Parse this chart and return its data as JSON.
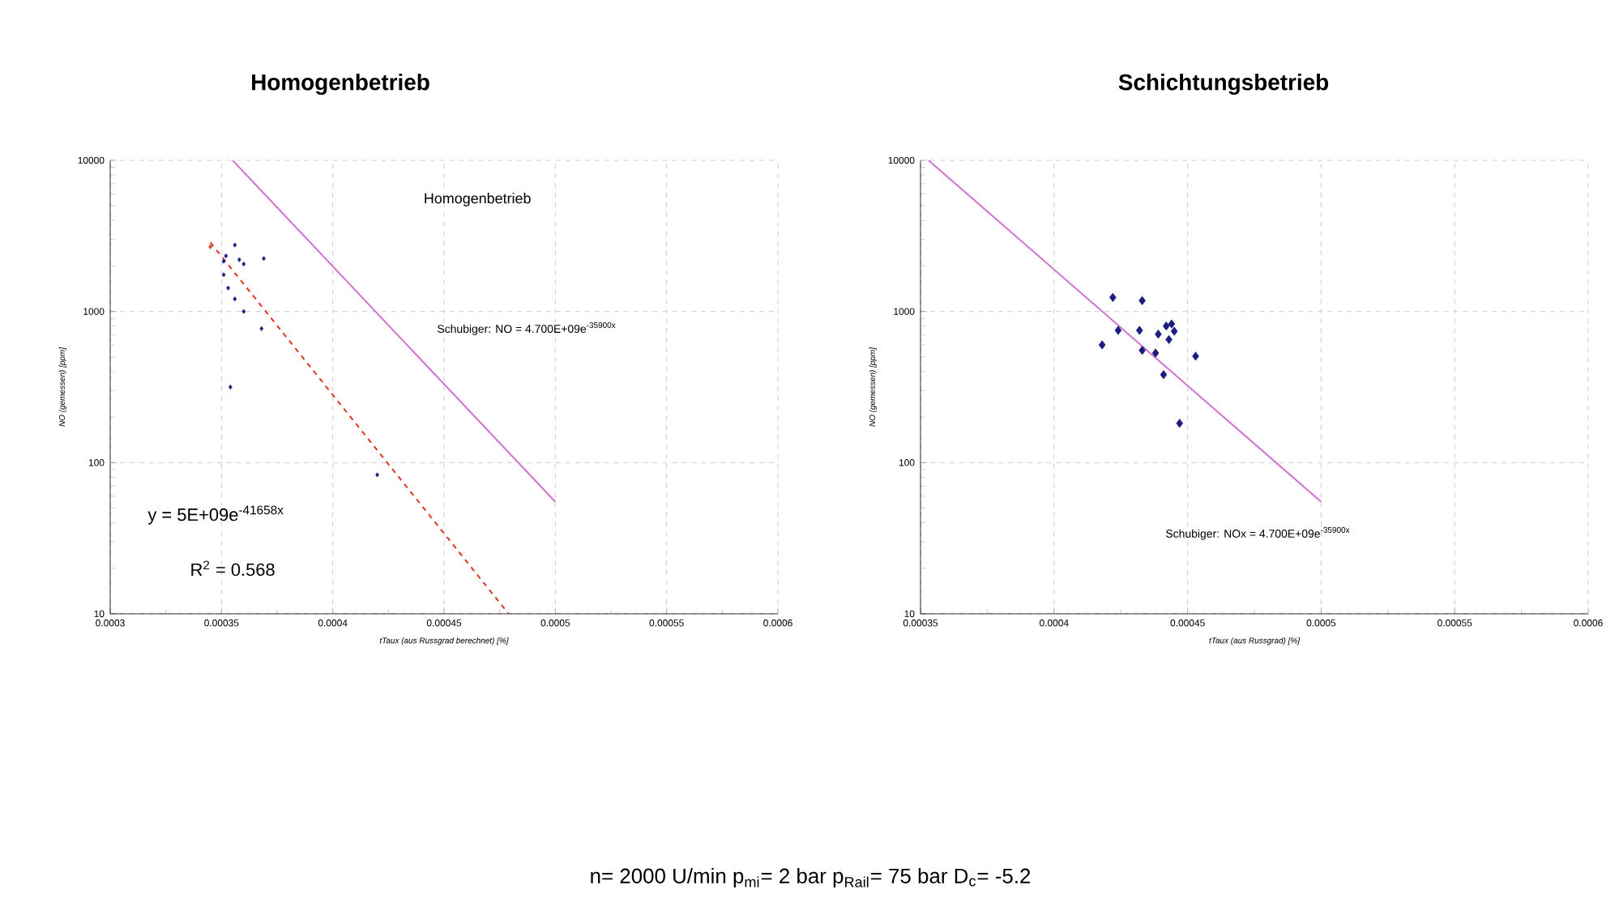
{
  "chart_data": [
    {
      "type": "scatter",
      "title": "Homogenbetrieb",
      "xlabel": "tTaux (aus Russgrad berechnet) [%]",
      "ylabel": "NO (gemessen) [ppm]",
      "xlim": [
        0.0003,
        0.0006
      ],
      "xticks": [
        0.0003,
        0.00035,
        0.0004,
        0.00045,
        0.0005,
        0.00055,
        0.0006
      ],
      "ylim": [
        10,
        10000
      ],
      "yticks": [
        10,
        100,
        1000,
        10000
      ],
      "log": "y",
      "grid": true,
      "series": [
        {
          "marker": "diamond",
          "color": "#1c1c80",
          "x": [
            0.000351,
            0.000356,
            0.000352,
            0.00036,
            0.000369,
            0.000358,
            0.000351,
            0.000353,
            0.000356,
            0.00036,
            0.000368,
            0.000354,
            0.00042
          ],
          "values": [
            2150,
            2750,
            2330,
            2060,
            2240,
            2200,
            1750,
            1430,
            1210,
            1000,
            770,
            316,
            83
          ]
        },
        {
          "marker": "diamond",
          "color": "#d04020",
          "x": [
            0.000345
          ],
          "values": [
            2680
          ]
        },
        {
          "type": "line",
          "marker": "none",
          "color": "#d070d0",
          "line_style": "solid",
          "x": [
            0.000355,
            0.0005
          ],
          "values": [
            10000,
            55
          ]
        },
        {
          "type": "line",
          "marker": "none",
          "color": "#e03020",
          "line_style": "dashed",
          "x": [
            0.000345,
            0.000479
          ],
          "values": [
            2860,
            10
          ]
        }
      ],
      "annotations": [
        "Homogenbetrieb",
        "Schubiger: NO = 4.700E+09e$^{-35900x}$",
        "y = 5E+09e$^{-41658x}$",
        "R$^{2}$ = 0.568",
        "n= 2000 U/min p$_{mi}$= 2 bar p$_{Rail}$= 75 bar D$_{c}$= -5.2"
      ]
    },
    {
      "type": "scatter",
      "title": "Schichtungsbetrieb",
      "xlabel": "tTaux (aus Russgrad) [%]",
      "ylabel": "NO (gemessen) [ppm]",
      "xlim": [
        0.00035,
        0.0006
      ],
      "xticks": [
        0.00035,
        0.0004,
        0.00045,
        0.0005,
        0.00055,
        0.0006
      ],
      "ylim": [
        10,
        10000
      ],
      "yticks": [
        10,
        100,
        1000,
        10000
      ],
      "log": "y",
      "grid": true,
      "series": [
        {
          "marker": "diamond",
          "color": "#1c1c80",
          "x": [
            0.000418,
            0.000422,
            0.000424,
            0.000432,
            0.000433,
            0.000433,
            0.000438,
            0.000439,
            0.000441,
            0.000442,
            0.000443,
            0.000444,
            0.000445,
            0.000447,
            0.000453
          ],
          "values": [
            601,
            1238,
            750,
            750,
            1180,
            553,
            531,
            708,
            382,
            801,
            652,
            827,
            740,
            182,
            506
          ]
        },
        {
          "type": "line",
          "marker": "none",
          "color": "#d070d0",
          "line_style": "solid",
          "x": [
            0.000353,
            0.0005
          ],
          "values": [
            10000,
            55
          ]
        }
      ],
      "annotations": [
        "Schubiger: NOx = 4.700E+09e$^{-35900x}$"
      ]
    }
  ]
}
